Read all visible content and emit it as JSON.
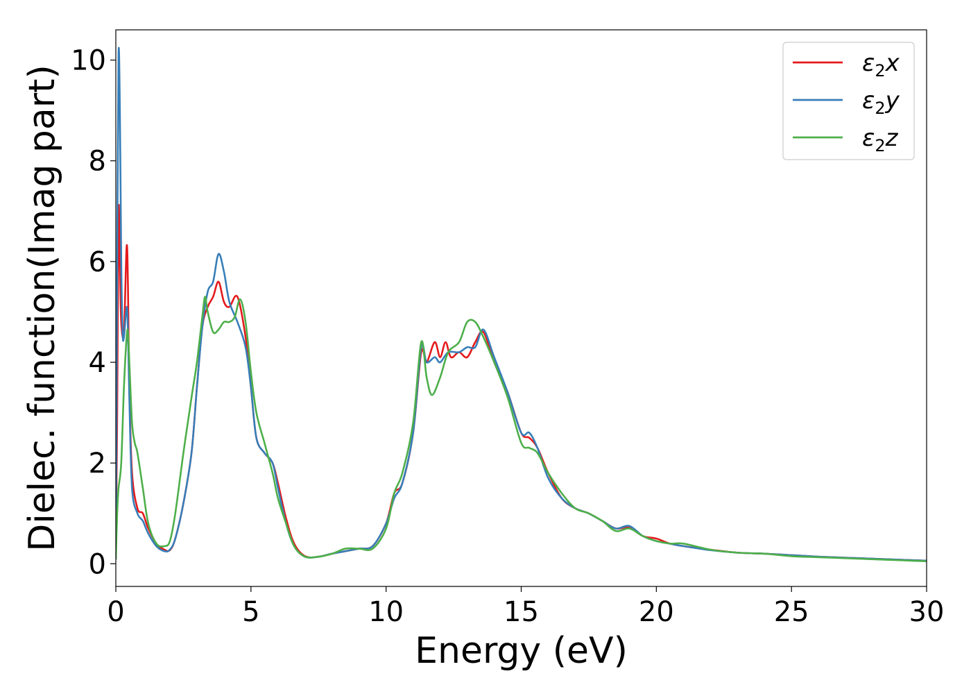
{
  "chart_data": {
    "type": "line",
    "xlabel": "Energy (eV)",
    "ylabel": "Dielec. function(Imag part)",
    "xlim": [
      0,
      30
    ],
    "ylim": [
      -0.45,
      10.6
    ],
    "xticks": [
      0,
      5,
      10,
      15,
      20,
      25,
      30
    ],
    "xtick_labels": [
      "0",
      "5",
      "10",
      "15",
      "20",
      "25",
      "30"
    ],
    "yticks": [
      0,
      2,
      4,
      6,
      8,
      10
    ],
    "ytick_labels": [
      "0",
      "2",
      "4",
      "6",
      "8",
      "10"
    ],
    "grid": false,
    "legend_position": "top-right",
    "series": [
      {
        "name": "ε₂x",
        "legend_base": "ε",
        "legend_sub": "2",
        "legend_var": "x",
        "color": "#e41a1c",
        "x": [
          0,
          0.05,
          0.1,
          0.15,
          0.2,
          0.3,
          0.4,
          0.45,
          0.5,
          0.6,
          0.8,
          1.0,
          1.2,
          1.5,
          1.8,
          2.0,
          2.2,
          2.5,
          2.8,
          3.0,
          3.2,
          3.4,
          3.6,
          3.8,
          4.0,
          4.2,
          4.5,
          4.8,
          5.0,
          5.2,
          5.5,
          5.8,
          6.0,
          6.3,
          6.6,
          7.0,
          7.5,
          8.0,
          8.5,
          9.0,
          9.5,
          10.0,
          10.3,
          10.6,
          11.0,
          11.3,
          11.5,
          11.8,
          12.0,
          12.2,
          12.4,
          12.7,
          13.0,
          13.3,
          13.6,
          14.0,
          14.5,
          15.0,
          15.3,
          15.6,
          16.0,
          16.5,
          17.0,
          17.5,
          18.0,
          18.5,
          19.0,
          19.5,
          20.0,
          20.5,
          21.0,
          22.0,
          23.0,
          24.0,
          25.0,
          26.0,
          27.0,
          28.0,
          29.0,
          30.0
        ],
        "values": [
          0.1,
          3.0,
          7.0,
          6.0,
          4.8,
          4.6,
          6.3,
          5.5,
          3.5,
          1.8,
          1.1,
          1.0,
          0.7,
          0.4,
          0.28,
          0.27,
          0.5,
          1.2,
          2.2,
          3.5,
          4.7,
          5.1,
          5.3,
          5.6,
          5.2,
          5.1,
          5.3,
          4.5,
          3.5,
          2.5,
          2.2,
          2.0,
          1.6,
          0.9,
          0.4,
          0.15,
          0.14,
          0.2,
          0.25,
          0.3,
          0.35,
          0.8,
          1.4,
          1.6,
          2.6,
          4.2,
          4.0,
          4.4,
          4.1,
          4.4,
          4.1,
          4.2,
          4.1,
          4.4,
          4.6,
          4.0,
          3.4,
          2.6,
          2.5,
          2.3,
          1.8,
          1.3,
          1.1,
          1.0,
          0.85,
          0.7,
          0.72,
          0.55,
          0.5,
          0.4,
          0.35,
          0.28,
          0.22,
          0.2,
          0.17,
          0.14,
          0.12,
          0.1,
          0.08,
          0.06
        ]
      },
      {
        "name": "ε₂y",
        "legend_base": "ε",
        "legend_sub": "2",
        "legend_var": "y",
        "color": "#377eb8",
        "x": [
          0,
          0.05,
          0.1,
          0.15,
          0.2,
          0.25,
          0.3,
          0.4,
          0.45,
          0.5,
          0.6,
          0.8,
          1.0,
          1.2,
          1.5,
          1.8,
          2.0,
          2.2,
          2.5,
          2.8,
          3.0,
          3.2,
          3.4,
          3.6,
          3.8,
          4.0,
          4.2,
          4.5,
          4.8,
          5.0,
          5.2,
          5.5,
          5.8,
          6.0,
          6.3,
          6.6,
          7.0,
          7.5,
          8.0,
          8.5,
          9.0,
          9.5,
          10.0,
          10.3,
          10.6,
          11.0,
          11.3,
          11.5,
          11.8,
          12.0,
          12.3,
          12.7,
          13.0,
          13.3,
          13.6,
          14.0,
          14.5,
          15.0,
          15.3,
          15.6,
          16.0,
          16.5,
          17.0,
          17.5,
          18.0,
          18.5,
          19.0,
          19.5,
          20.0,
          20.5,
          21.0,
          22.0,
          23.0,
          24.0,
          25.0,
          26.0,
          27.0,
          28.0,
          29.0,
          30.0
        ],
        "values": [
          0.1,
          6.0,
          10.1,
          9.0,
          6.0,
          4.6,
          4.5,
          5.1,
          4.6,
          3.3,
          1.5,
          1.0,
          0.85,
          0.6,
          0.35,
          0.25,
          0.28,
          0.5,
          1.2,
          2.2,
          3.5,
          4.7,
          5.4,
          5.6,
          6.15,
          5.8,
          5.2,
          4.8,
          4.3,
          3.5,
          2.5,
          2.2,
          2.0,
          1.5,
          0.8,
          0.35,
          0.14,
          0.14,
          0.2,
          0.25,
          0.3,
          0.35,
          0.8,
          1.3,
          1.6,
          2.6,
          4.3,
          4.0,
          4.1,
          4.0,
          4.2,
          4.2,
          4.3,
          4.3,
          4.65,
          4.1,
          3.4,
          2.6,
          2.6,
          2.3,
          1.7,
          1.3,
          1.1,
          1.0,
          0.85,
          0.7,
          0.75,
          0.55,
          0.45,
          0.4,
          0.35,
          0.27,
          0.22,
          0.2,
          0.17,
          0.14,
          0.12,
          0.1,
          0.08,
          0.06
        ]
      },
      {
        "name": "ε₂z",
        "legend_base": "ε",
        "legend_sub": "2",
        "legend_var": "z",
        "color": "#4daf4a",
        "x": [
          0,
          0.05,
          0.1,
          0.2,
          0.3,
          0.4,
          0.45,
          0.5,
          0.6,
          0.7,
          0.8,
          1.0,
          1.2,
          1.5,
          1.8,
          2.0,
          2.2,
          2.5,
          2.8,
          3.0,
          3.2,
          3.3,
          3.4,
          3.6,
          3.8,
          4.0,
          4.2,
          4.4,
          4.6,
          4.8,
          5.0,
          5.2,
          5.5,
          5.8,
          6.0,
          6.3,
          6.6,
          7.0,
          7.5,
          8.0,
          8.5,
          9.0,
          9.5,
          10.0,
          10.3,
          10.6,
          11.0,
          11.3,
          11.5,
          11.7,
          12.0,
          12.3,
          12.7,
          13.0,
          13.3,
          13.6,
          14.0,
          14.5,
          15.0,
          15.3,
          15.6,
          16.0,
          16.5,
          17.0,
          17.5,
          18.0,
          18.5,
          19.0,
          19.5,
          20.0,
          20.5,
          21.0,
          22.0,
          23.0,
          24.0,
          25.0,
          26.0,
          27.0,
          28.0,
          29.0,
          30.0
        ],
        "values": [
          0.1,
          1.0,
          1.5,
          2.0,
          3.5,
          4.5,
          4.6,
          4.0,
          2.8,
          2.4,
          2.2,
          1.5,
          0.8,
          0.4,
          0.35,
          0.45,
          1.0,
          2.2,
          3.3,
          4.0,
          4.9,
          5.3,
          5.0,
          4.6,
          4.65,
          4.8,
          4.8,
          4.9,
          5.25,
          4.8,
          3.8,
          3.0,
          2.4,
          1.8,
          1.3,
          0.8,
          0.35,
          0.14,
          0.14,
          0.2,
          0.3,
          0.3,
          0.3,
          0.7,
          1.4,
          1.8,
          2.8,
          4.4,
          3.7,
          3.35,
          3.7,
          4.2,
          4.4,
          4.8,
          4.8,
          4.5,
          4.0,
          3.3,
          2.4,
          2.3,
          2.2,
          1.8,
          1.4,
          1.1,
          1.0,
          0.85,
          0.65,
          0.7,
          0.55,
          0.45,
          0.4,
          0.4,
          0.28,
          0.22,
          0.2,
          0.15,
          0.13,
          0.11,
          0.09,
          0.07,
          0.05
        ]
      }
    ]
  }
}
